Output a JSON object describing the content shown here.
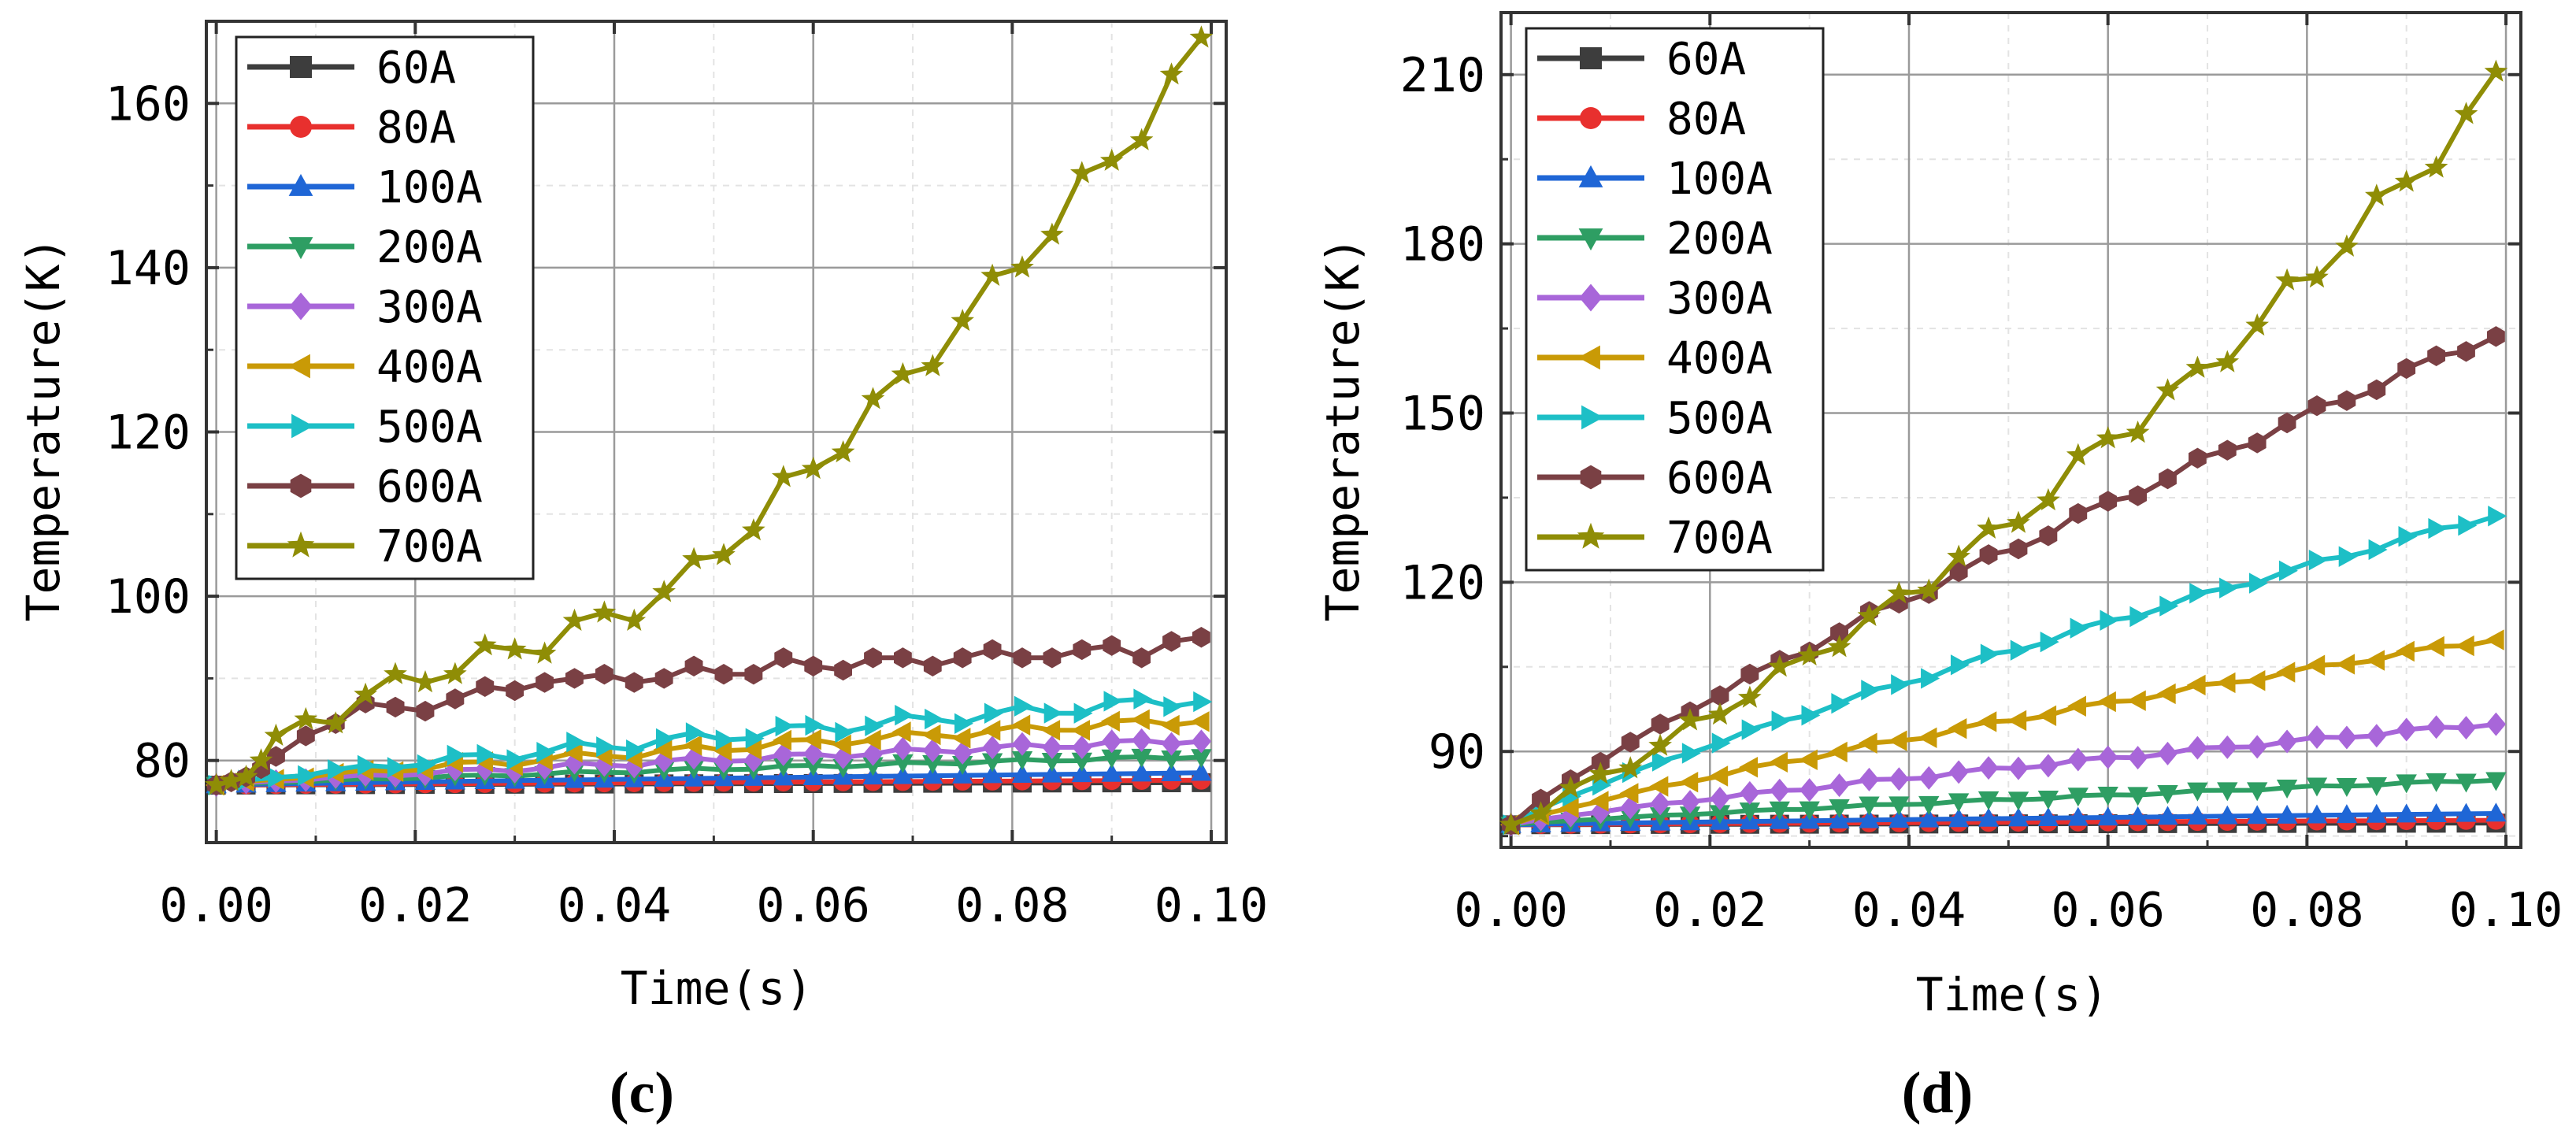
{
  "chart_data": [
    {
      "type": "line",
      "panel_label": "(c)",
      "xlabel": "Time(s)",
      "ylabel": "Temperature(K)",
      "xlim": [
        -0.001,
        0.1015
      ],
      "ylim": [
        70,
        170
      ],
      "xticks": [
        0,
        0.02,
        0.04,
        0.06,
        0.08,
        0.1
      ],
      "xtick_labels": [
        "0.00",
        "0.02",
        "0.04",
        "0.06",
        "0.08",
        "0.10"
      ],
      "yticks": [
        80,
        100,
        120,
        140,
        160
      ],
      "ytick_labels": [
        "80",
        "100",
        "120",
        "140",
        "160"
      ],
      "grid": true,
      "legend_position": "top-left",
      "series": [
        {
          "name": "60A",
          "color": "#3d3d3d",
          "marker": "square",
          "start": 77,
          "end": 77.3,
          "wiggle": 0
        },
        {
          "name": "80A",
          "color": "#e8302e",
          "marker": "circle",
          "start": 77,
          "end": 77.6,
          "wiggle": 0
        },
        {
          "name": "100A",
          "color": "#1f66d6",
          "marker": "triangle-up",
          "start": 77,
          "end": 78.5,
          "wiggle": 0
        },
        {
          "name": "200A",
          "color": "#2e9e63",
          "marker": "triangle-down",
          "start": 77,
          "end": 80.5,
          "wiggle": 0.2
        },
        {
          "name": "300A",
          "color": "#a866d9",
          "marker": "diamond",
          "start": 77,
          "end": 82.5,
          "wiggle": 0.4
        },
        {
          "name": "400A",
          "color": "#c99a06",
          "marker": "triangle-left",
          "start": 77,
          "end": 85,
          "wiggle": 0.6
        },
        {
          "name": "500A",
          "color": "#1dbfc6",
          "marker": "triangle-right",
          "start": 77,
          "end": 87.5,
          "wiggle": 0.8
        },
        {
          "name": "600A",
          "color": "#7a4044",
          "marker": "hexagon",
          "start": 77,
          "end": 95,
          "wiggle": 1.5
        },
        {
          "name": "700A",
          "color": "#8f8d06",
          "marker": "star",
          "start": 77,
          "end": 168,
          "wiggle": 2
        }
      ],
      "series_overrides": {
        "600A": {
          "x": [
            0,
            0.0015,
            0.003,
            0.0045,
            0.006,
            0.009,
            0.012,
            0.015,
            0.018,
            0.021,
            0.024,
            0.027,
            0.03,
            0.033,
            0.036,
            0.039,
            0.042,
            0.045,
            0.048,
            0.051,
            0.054,
            0.057,
            0.06,
            0.063,
            0.066,
            0.069,
            0.072,
            0.075,
            0.078,
            0.081,
            0.084,
            0.087,
            0.09,
            0.093,
            0.096,
            0.099
          ],
          "y": [
            77,
            77.4,
            78,
            79,
            80.5,
            83,
            84.5,
            87,
            86.5,
            86,
            87.5,
            89,
            88.5,
            89.5,
            90,
            90.5,
            89.5,
            90,
            91.5,
            90.5,
            90.5,
            92.5,
            91.5,
            91,
            92.5,
            92.5,
            91.5,
            92.5,
            93.5,
            92.5,
            92.5,
            93.5,
            94,
            92.5,
            94.5,
            95
          ]
        },
        "700A": {
          "x": [
            0,
            0.0015,
            0.003,
            0.0045,
            0.006,
            0.009,
            0.012,
            0.015,
            0.018,
            0.021,
            0.024,
            0.027,
            0.03,
            0.033,
            0.036,
            0.039,
            0.042,
            0.045,
            0.048,
            0.051,
            0.054,
            0.057,
            0.06,
            0.063,
            0.066,
            0.069,
            0.072,
            0.075,
            0.078,
            0.081,
            0.084,
            0.087,
            0.09,
            0.093,
            0.096,
            0.099
          ],
          "y": [
            77,
            77.5,
            78,
            80,
            83,
            85,
            84.5,
            88,
            90.5,
            89.5,
            90.5,
            94,
            93.5,
            93,
            97,
            98,
            97,
            100.5,
            104.5,
            105,
            108,
            114.5,
            115.5,
            117.5,
            124,
            127,
            128,
            133.5,
            139,
            140,
            144,
            151.5,
            153,
            155.5,
            163.5,
            168
          ]
        }
      }
    },
    {
      "type": "line",
      "panel_label": "(d)",
      "xlabel": "Time(s)",
      "ylabel": "Temperature(K)",
      "xlim": [
        -0.001,
        0.1015
      ],
      "ylim": [
        73,
        221
      ],
      "xticks": [
        0,
        0.02,
        0.04,
        0.06,
        0.08,
        0.1
      ],
      "xtick_labels": [
        "0.00",
        "0.02",
        "0.04",
        "0.06",
        "0.08",
        "0.10"
      ],
      "yticks": [
        90,
        120,
        150,
        180,
        210
      ],
      "ytick_labels": [
        "90",
        "120",
        "150",
        "180",
        "210"
      ],
      "grid": true,
      "legend_position": "top-left",
      "series": [
        {
          "name": "60A",
          "color": "#3d3d3d",
          "marker": "square",
          "start": 77,
          "end": 77.3,
          "wiggle": 0
        },
        {
          "name": "80A",
          "color": "#e8302e",
          "marker": "circle",
          "start": 77,
          "end": 77.8,
          "wiggle": 0
        },
        {
          "name": "100A",
          "color": "#1f66d6",
          "marker": "triangle-up",
          "start": 77,
          "end": 79,
          "wiggle": 0
        },
        {
          "name": "200A",
          "color": "#2e9e63",
          "marker": "triangle-down",
          "start": 77,
          "end": 85,
          "wiggle": 0.2
        },
        {
          "name": "300A",
          "color": "#a866d9",
          "marker": "diamond",
          "start": 77,
          "end": 95,
          "wiggle": 0.4
        },
        {
          "name": "400A",
          "color": "#c99a06",
          "marker": "triangle-left",
          "start": 77,
          "end": 110,
          "wiggle": 0.5
        },
        {
          "name": "500A",
          "color": "#1dbfc6",
          "marker": "triangle-right",
          "start": 77,
          "end": 132,
          "wiggle": 0.6
        },
        {
          "name": "600A",
          "color": "#7a4044",
          "marker": "hexagon",
          "start": 77,
          "end": 164,
          "wiggle": 1
        },
        {
          "name": "700A",
          "color": "#8f8d06",
          "marker": "star",
          "start": 77,
          "end": 210.5,
          "wiggle": 1.5
        }
      ],
      "series_overrides": {
        "700A": {
          "x": [
            0,
            0.003,
            0.006,
            0.009,
            0.012,
            0.015,
            0.018,
            0.021,
            0.024,
            0.027,
            0.03,
            0.033,
            0.036,
            0.039,
            0.042,
            0.045,
            0.048,
            0.051,
            0.054,
            0.057,
            0.06,
            0.063,
            0.066,
            0.069,
            0.072,
            0.075,
            0.078,
            0.081,
            0.084,
            0.087,
            0.09,
            0.093,
            0.096,
            0.099
          ],
          "y": [
            77,
            79,
            83.5,
            86,
            87,
            91,
            95.5,
            96.5,
            99.5,
            105,
            107,
            108.5,
            114,
            118,
            118.5,
            124.5,
            129.5,
            130.5,
            134.5,
            142.5,
            145.5,
            146.5,
            154,
            158,
            159,
            165.5,
            173.5,
            174,
            179.5,
            188.5,
            191,
            193.5,
            203,
            210.5
          ]
        }
      }
    }
  ]
}
